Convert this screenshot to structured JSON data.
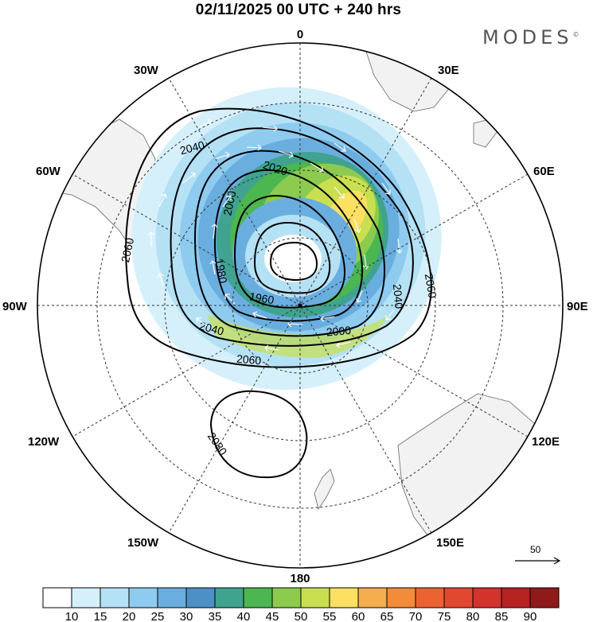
{
  "header": {
    "title": "02/11/2025  00 UTC  + 240 hrs",
    "brand": "MODES",
    "brand_mark": "©"
  },
  "longitude_labels": [
    "0",
    "30E",
    "60E",
    "90E",
    "120E",
    "150E",
    "180",
    "150W",
    "120W",
    "90W",
    "60W",
    "30W"
  ],
  "contour_labels": [
    "2040",
    "2020",
    "2000",
    "2060",
    "1980",
    "1960",
    "2040",
    "2060",
    "2000",
    "2040",
    "2060",
    "2080"
  ],
  "reference_vector": {
    "label": "50"
  },
  "colorbar": {
    "colors": [
      "#ffffff",
      "#d6f0fb",
      "#b5e1f5",
      "#8ecbef",
      "#6aaedf",
      "#4c90c6",
      "#3fa38f",
      "#4cb650",
      "#8ccb4f",
      "#c9df4f",
      "#fbe061",
      "#f6ad4f",
      "#f28b3a",
      "#ec6332",
      "#e2472f",
      "#d4322c",
      "#b52323",
      "#8f1a1a"
    ],
    "labels": [
      "10",
      "15",
      "20",
      "25",
      "30",
      "35",
      "40",
      "45",
      "50",
      "55",
      "60",
      "65",
      "70",
      "75",
      "80",
      "85",
      "90"
    ]
  }
}
